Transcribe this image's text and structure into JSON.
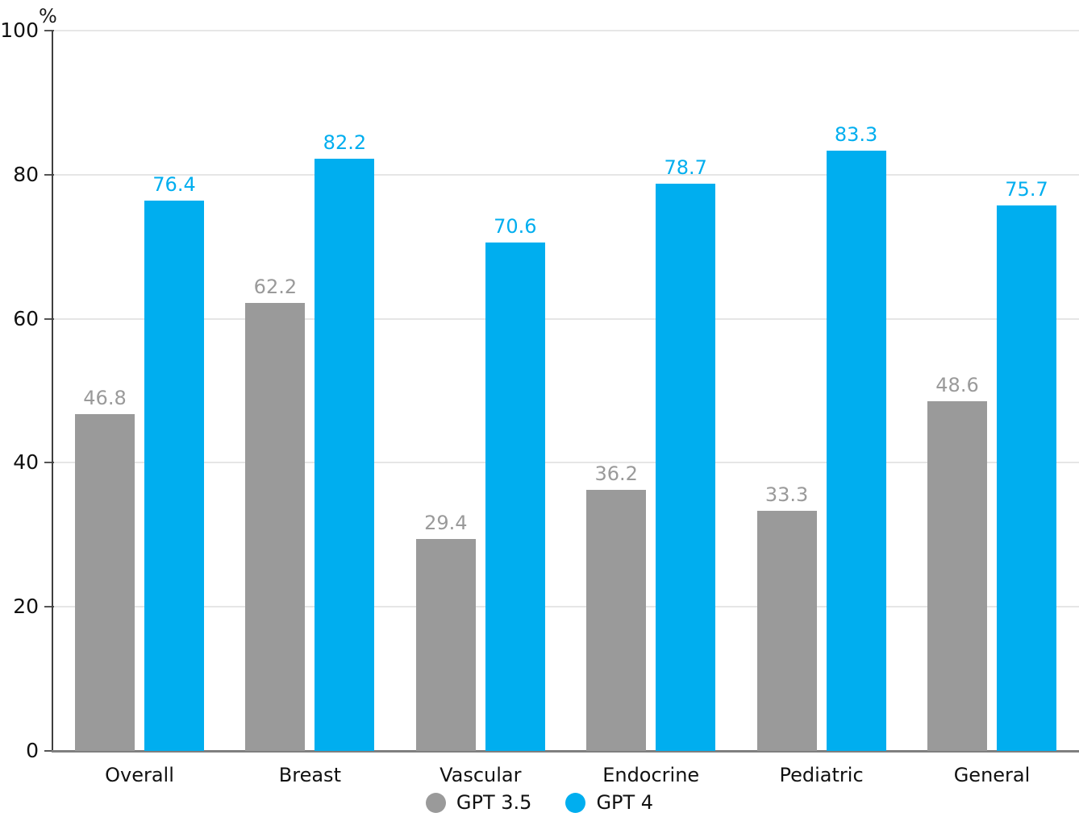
{
  "chart_data": {
    "type": "bar",
    "title": "",
    "xlabel": "",
    "ylabel": "%",
    "ylim": [
      0,
      100
    ],
    "yticks": [
      0,
      20,
      40,
      60,
      80,
      100
    ],
    "grid": true,
    "legend_position": "bottom-center",
    "categories": [
      "Overall",
      "Breast",
      "Vascular",
      "Endocrine",
      "Pediatric",
      "General"
    ],
    "series": [
      {
        "name": "GPT 3.5",
        "color": "#9a9a9a",
        "values": [
          46.8,
          62.2,
          29.4,
          36.2,
          33.3,
          48.6
        ]
      },
      {
        "name": "GPT 4",
        "color": "#00aeef",
        "values": [
          76.4,
          82.2,
          70.6,
          78.7,
          83.3,
          75.7
        ]
      }
    ],
    "value_labels_shown": true
  },
  "axis": {
    "percent_label": "%"
  },
  "colors": {
    "bar_gray": "#9a9a9a",
    "bar_blue": "#00aeef",
    "axis_vertical": "#3f3f3f",
    "axis_horizontal": "#7f7f7f",
    "gridline": "#e6e6e6",
    "text": "#111111"
  }
}
